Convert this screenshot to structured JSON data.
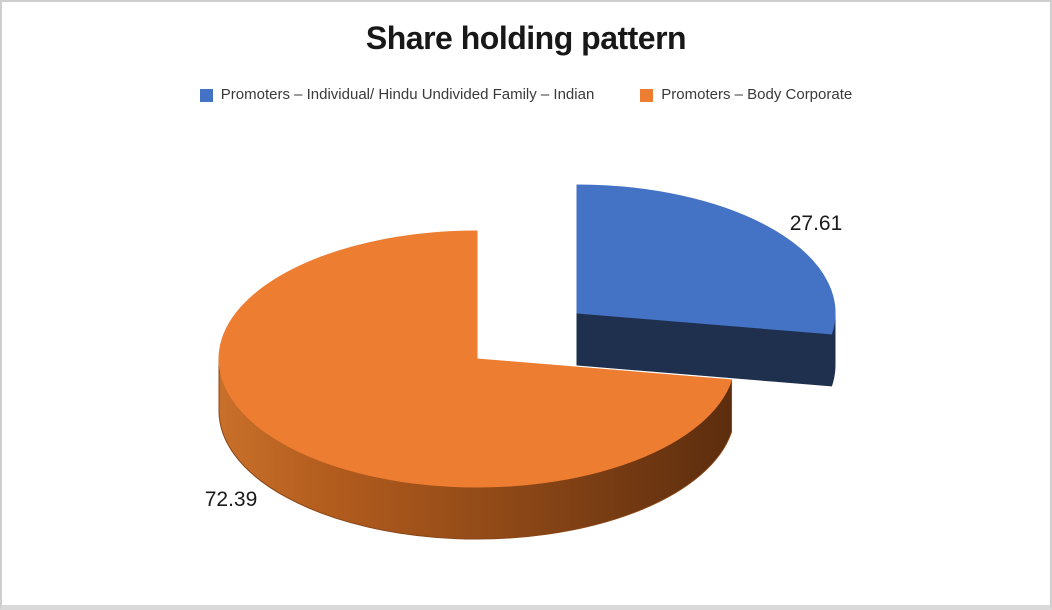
{
  "chart_data": {
    "type": "pie",
    "style": "3d-exploded",
    "title": "Share holding pattern",
    "legend_position": "top",
    "series": [
      {
        "name": "Promoters – Individual/ Hindu Undivided Family – Indian",
        "value": 27.61,
        "label": "27.61",
        "color": "#4472C4",
        "side_color": "#1F304E"
      },
      {
        "name": "Promoters – Body Corporate",
        "value": 72.39,
        "label": "72.39",
        "color": "#ED7D31",
        "side_gradient": [
          "#C8702A",
          "#B25C1E",
          "#8A4616",
          "#5C2D0E"
        ]
      }
    ]
  }
}
